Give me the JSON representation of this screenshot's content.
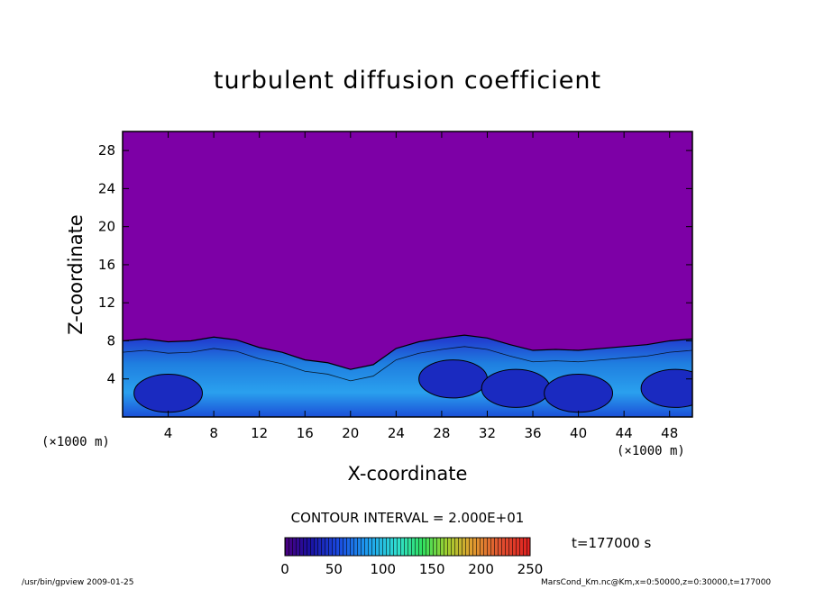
{
  "chart_data": {
    "type": "heatmap",
    "title": "turbulent diffusion coefficient",
    "xlabel": "X-coordinate",
    "ylabel": "Z-coordinate",
    "x_unit": "(×1000 m)",
    "z_unit": "(×1000 m)",
    "xlim": [
      0,
      50
    ],
    "ylim": [
      0,
      30
    ],
    "x_ticks": [
      "4",
      "8",
      "12",
      "16",
      "20",
      "24",
      "28",
      "32",
      "36",
      "40",
      "44",
      "48"
    ],
    "y_ticks": [
      "4",
      "8",
      "12",
      "16",
      "20",
      "24",
      "28"
    ],
    "x_tick_values": [
      4,
      8,
      12,
      16,
      20,
      24,
      28,
      32,
      36,
      40,
      44,
      48
    ],
    "y_tick_values": [
      4,
      8,
      12,
      16,
      20,
      24,
      28
    ],
    "contour_interval": "CONTOUR INTERVAL = 2.000E+01",
    "colorbar": {
      "min": 0,
      "max": 250,
      "ticks": [
        "0",
        "50",
        "100",
        "150",
        "200",
        "250"
      ],
      "tick_values": [
        0,
        50,
        100,
        150,
        200,
        250
      ]
    },
    "time_label": "t=177000  s",
    "boundary_layer_top": [
      [
        0,
        8.0
      ],
      [
        2,
        8.2
      ],
      [
        4,
        7.9
      ],
      [
        6,
        8.0
      ],
      [
        8,
        8.4
      ],
      [
        10,
        8.1
      ],
      [
        12,
        7.3
      ],
      [
        14,
        6.8
      ],
      [
        16,
        6.0
      ],
      [
        18,
        5.7
      ],
      [
        20,
        5.0
      ],
      [
        22,
        5.5
      ],
      [
        24,
        7.2
      ],
      [
        26,
        7.9
      ],
      [
        28,
        8.3
      ],
      [
        30,
        8.6
      ],
      [
        32,
        8.3
      ],
      [
        34,
        7.6
      ],
      [
        36,
        7.0
      ],
      [
        38,
        7.1
      ],
      [
        40,
        7.0
      ],
      [
        42,
        7.2
      ],
      [
        44,
        7.4
      ],
      [
        46,
        7.6
      ],
      [
        48,
        8.0
      ],
      [
        50,
        8.2
      ]
    ],
    "eddies": [
      {
        "x": 4,
        "z": 2.5
      },
      {
        "x": 29,
        "z": 4.0
      },
      {
        "x": 34.5,
        "z": 3.0
      },
      {
        "x": 40,
        "z": 2.5
      },
      {
        "x": 48.5,
        "z": 3.0
      }
    ]
  },
  "footer": {
    "left": "/usr/bin/gpview   2009-01-25",
    "right": "MarsCond_Km.nc@Km,x=0:50000,z=0:30000,t=177000"
  }
}
